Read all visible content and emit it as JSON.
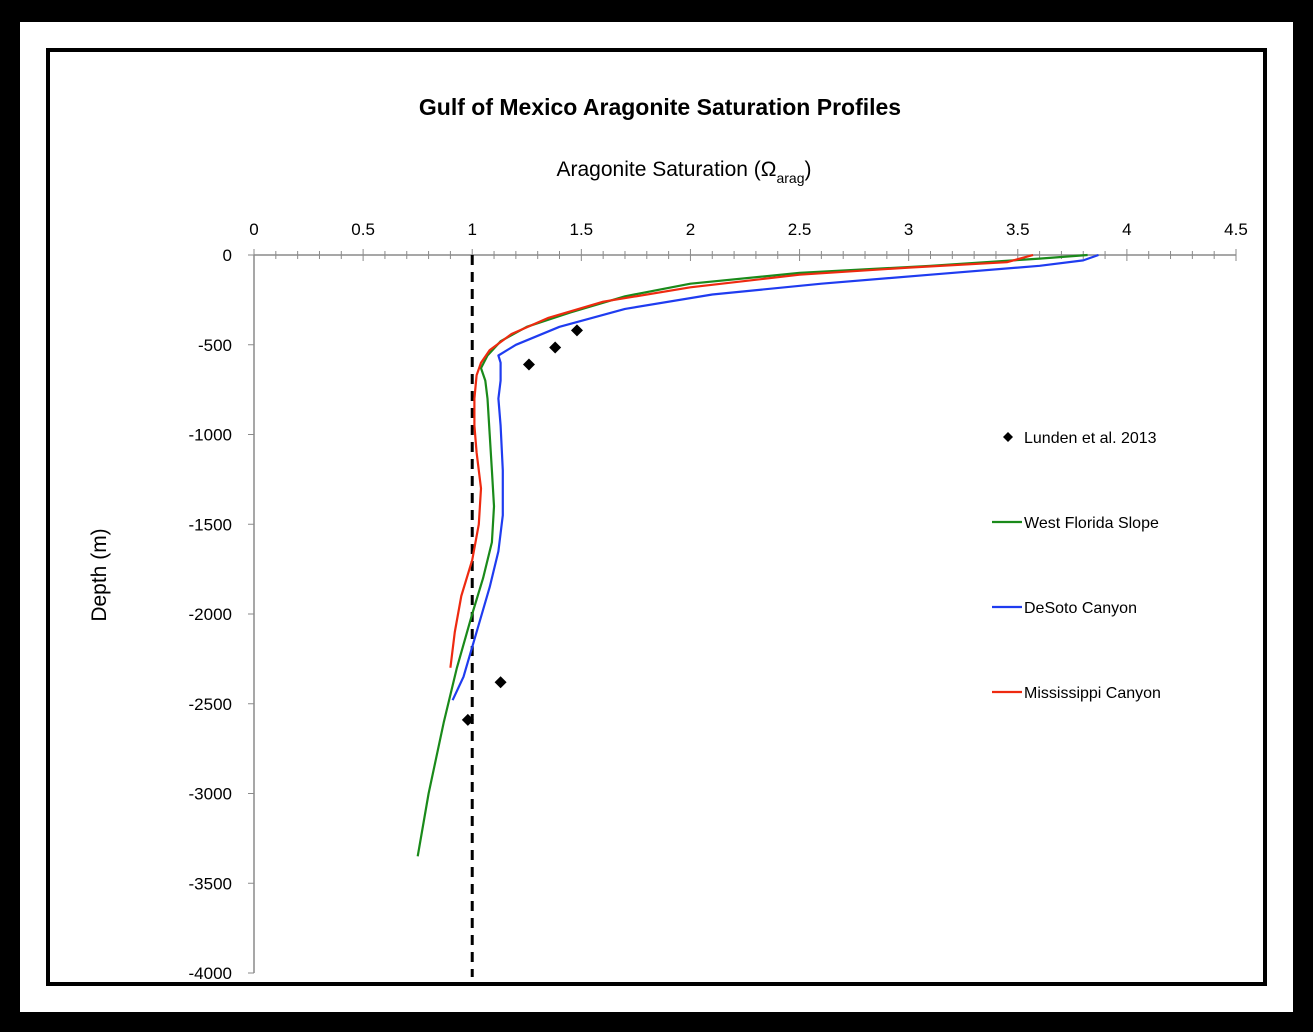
{
  "chart_data": {
    "type": "line",
    "title": "Gulf of Mexico Aragonite Saturation Profiles",
    "xlabel": {
      "main": "Aragonite Saturation (Ω",
      "sub": "arag",
      "close": ")"
    },
    "ylabel": "Depth (m)",
    "xlim": [
      0,
      4.5
    ],
    "ylim": [
      -4000,
      0
    ],
    "x_ticks": [
      "0",
      "0.5",
      "1",
      "1.5",
      "2",
      "2.5",
      "3",
      "3.5",
      "4",
      "4.5"
    ],
    "y_ticks": [
      "0",
      "-500",
      "-1000",
      "-1500",
      "-2000",
      "-2500",
      "-3000",
      "-3500",
      "-4000"
    ],
    "reference_line": {
      "x": 1,
      "style": "dashed",
      "color": "#000000"
    },
    "series": [
      {
        "name": "Lunden et al. 2013",
        "kind": "scatter",
        "marker": "diamond",
        "color": "#000000",
        "points": [
          [
            1.48,
            -420
          ],
          [
            1.38,
            -515
          ],
          [
            1.26,
            -610
          ],
          [
            1.13,
            -2380
          ],
          [
            0.98,
            -2590
          ]
        ]
      },
      {
        "name": "West Florida Slope",
        "kind": "line",
        "color": "#1a8a1a",
        "points": [
          [
            3.82,
            0
          ],
          [
            3.6,
            -20
          ],
          [
            3.1,
            -60
          ],
          [
            2.5,
            -100
          ],
          [
            2.0,
            -160
          ],
          [
            1.7,
            -230
          ],
          [
            1.45,
            -320
          ],
          [
            1.25,
            -400
          ],
          [
            1.13,
            -480
          ],
          [
            1.07,
            -560
          ],
          [
            1.04,
            -630
          ],
          [
            1.06,
            -700
          ],
          [
            1.07,
            -800
          ],
          [
            1.08,
            -1000
          ],
          [
            1.09,
            -1200
          ],
          [
            1.1,
            -1400
          ],
          [
            1.09,
            -1600
          ],
          [
            1.05,
            -1800
          ],
          [
            1.0,
            -2000
          ],
          [
            0.93,
            -2300
          ],
          [
            0.87,
            -2600
          ],
          [
            0.8,
            -3000
          ],
          [
            0.75,
            -3350
          ]
        ]
      },
      {
        "name": "DeSoto Canyon",
        "kind": "line",
        "color": "#1f3cf0",
        "points": [
          [
            3.87,
            0
          ],
          [
            3.8,
            -30
          ],
          [
            3.6,
            -60
          ],
          [
            3.1,
            -110
          ],
          [
            2.6,
            -160
          ],
          [
            2.1,
            -220
          ],
          [
            1.7,
            -300
          ],
          [
            1.4,
            -400
          ],
          [
            1.2,
            -500
          ],
          [
            1.12,
            -560
          ],
          [
            1.13,
            -600
          ],
          [
            1.13,
            -700
          ],
          [
            1.12,
            -800
          ],
          [
            1.13,
            -950
          ],
          [
            1.14,
            -1200
          ],
          [
            1.14,
            -1450
          ],
          [
            1.12,
            -1650
          ],
          [
            1.08,
            -1850
          ],
          [
            1.02,
            -2100
          ],
          [
            0.96,
            -2350
          ],
          [
            0.91,
            -2480
          ]
        ]
      },
      {
        "name": "Mississippi Canyon",
        "kind": "line",
        "color": "#ee2a10",
        "points": [
          [
            3.57,
            0
          ],
          [
            3.45,
            -40
          ],
          [
            3.0,
            -70
          ],
          [
            2.5,
            -110
          ],
          [
            2.0,
            -180
          ],
          [
            1.6,
            -260
          ],
          [
            1.35,
            -350
          ],
          [
            1.18,
            -440
          ],
          [
            1.08,
            -530
          ],
          [
            1.04,
            -600
          ],
          [
            1.02,
            -670
          ],
          [
            1.01,
            -800
          ],
          [
            1.01,
            -950
          ],
          [
            1.02,
            -1100
          ],
          [
            1.04,
            -1300
          ],
          [
            1.03,
            -1500
          ],
          [
            1.0,
            -1700
          ],
          [
            0.95,
            -1900
          ],
          [
            0.92,
            -2100
          ],
          [
            0.9,
            -2300
          ]
        ]
      }
    ],
    "legend": {
      "position": "right",
      "entries": [
        "Lunden et al. 2013",
        "West Florida Slope",
        "DeSoto Canyon",
        "Mississippi Canyon"
      ]
    },
    "grid": false
  }
}
